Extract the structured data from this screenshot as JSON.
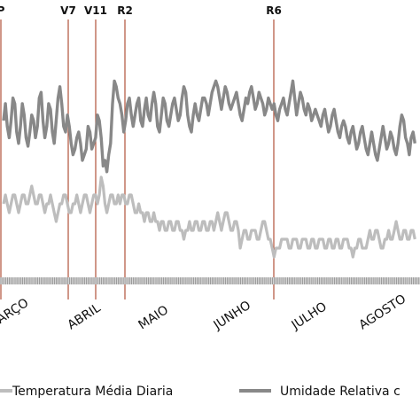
{
  "chart_data": {
    "type": "line",
    "xlabel": "",
    "ylabel": "",
    "month_labels": [
      "MARÇO",
      "ABRIL",
      "MAIO",
      "JUNHO",
      "JULHO",
      "AGOSTO"
    ],
    "stage_markers": [
      {
        "label": "P",
        "day": 0
      },
      {
        "label": "V7",
        "day": 36
      },
      {
        "label": "V11",
        "day": 52
      },
      {
        "label": "R2",
        "day": 68
      },
      {
        "label": "R6",
        "day": 152
      }
    ],
    "series": [
      {
        "name": "Umidade Relativa do Ar",
        "color": "#888888",
        "values": [
          64,
          70,
          62,
          58,
          64,
          72,
          70,
          60,
          56,
          62,
          70,
          66,
          58,
          55,
          60,
          66,
          64,
          58,
          62,
          72,
          74,
          64,
          58,
          62,
          70,
          68,
          60,
          56,
          64,
          72,
          76,
          70,
          62,
          60,
          66,
          62,
          56,
          52,
          54,
          58,
          60,
          56,
          50,
          52,
          54,
          62,
          60,
          54,
          56,
          58,
          66,
          64,
          58,
          48,
          50,
          46,
          52,
          56,
          70,
          78,
          76,
          72,
          70,
          66,
          60,
          64,
          70,
          72,
          66,
          62,
          66,
          70,
          72,
          64,
          62,
          68,
          72,
          66,
          64,
          70,
          74,
          70,
          62,
          60,
          66,
          72,
          70,
          64,
          62,
          66,
          70,
          72,
          68,
          64,
          66,
          72,
          76,
          74,
          66,
          62,
          60,
          66,
          70,
          66,
          64,
          68,
          72,
          72,
          70,
          66,
          70,
          74,
          76,
          78,
          76,
          72,
          68,
          72,
          76,
          74,
          70,
          68,
          70,
          72,
          74,
          70,
          66,
          64,
          68,
          72,
          70,
          74,
          76,
          72,
          68,
          70,
          74,
          72,
          70,
          66,
          68,
          72,
          70,
          68,
          70,
          66,
          64,
          68,
          70,
          72,
          68,
          66,
          70,
          74,
          78,
          72,
          66,
          70,
          74,
          72,
          68,
          66,
          70,
          68,
          64,
          66,
          68,
          66,
          64,
          62,
          66,
          68,
          64,
          60,
          62,
          66,
          68,
          64,
          60,
          58,
          62,
          64,
          62,
          58,
          56,
          60,
          62,
          58,
          54,
          56,
          60,
          62,
          58,
          54,
          52,
          56,
          60,
          56,
          52,
          50,
          54,
          58,
          62,
          58,
          54,
          56,
          60,
          58,
          54,
          52,
          56,
          62,
          66,
          64,
          58,
          56,
          52,
          58,
          60,
          56
        ],
        "label": "Umidade Relativa c"
      },
      {
        "name": "Temperatura Média Diaria",
        "color": "#bdbdbd",
        "values": [
          21,
          22,
          21,
          20,
          21,
          22,
          22,
          21,
          20,
          21,
          22,
          22,
          21,
          21,
          22,
          23,
          22,
          21,
          21,
          22,
          22,
          21,
          20,
          21,
          21,
          22,
          21,
          20,
          19,
          20,
          21,
          21,
          22,
          22,
          21,
          20,
          20,
          21,
          21,
          22,
          21,
          20,
          21,
          22,
          22,
          21,
          20,
          21,
          22,
          22,
          21,
          22,
          24,
          23,
          21,
          20,
          21,
          22,
          22,
          21,
          21,
          22,
          21,
          22,
          22,
          21,
          21,
          22,
          22,
          21,
          20,
          20,
          21,
          20,
          20,
          19,
          20,
          20,
          19,
          19,
          20,
          19,
          19,
          18,
          19,
          19,
          18,
          18,
          19,
          19,
          18,
          18,
          19,
          19,
          18,
          18,
          17,
          18,
          18,
          19,
          18,
          18,
          19,
          19,
          18,
          18,
          19,
          19,
          18,
          18,
          19,
          19,
          18,
          19,
          20,
          19,
          18,
          19,
          20,
          20,
          19,
          18,
          18,
          19,
          19,
          18,
          16,
          17,
          18,
          18,
          17,
          17,
          18,
          18,
          18,
          17,
          17,
          18,
          19,
          19,
          18,
          17,
          17,
          16,
          15,
          16,
          16,
          16,
          17,
          17,
          17,
          17,
          16,
          16,
          17,
          17,
          17,
          16,
          16,
          17,
          17,
          17,
          16,
          16,
          17,
          17,
          16,
          16,
          17,
          17,
          17,
          16,
          16,
          17,
          17,
          16,
          16,
          17,
          17,
          16,
          16,
          17,
          17,
          17,
          16,
          16,
          15,
          16,
          16,
          17,
          17,
          16,
          16,
          16,
          17,
          18,
          17,
          17,
          18,
          18,
          17,
          16,
          16,
          17,
          17,
          18,
          17,
          17,
          18,
          19,
          18,
          17,
          17,
          18,
          18,
          17,
          17,
          18,
          18,
          17
        ]
      }
    ],
    "legend": {
      "placement": "bottom",
      "temp_label": "Temperatura Média Diaria",
      "humidity_label": "Umidade Relativa c"
    }
  }
}
